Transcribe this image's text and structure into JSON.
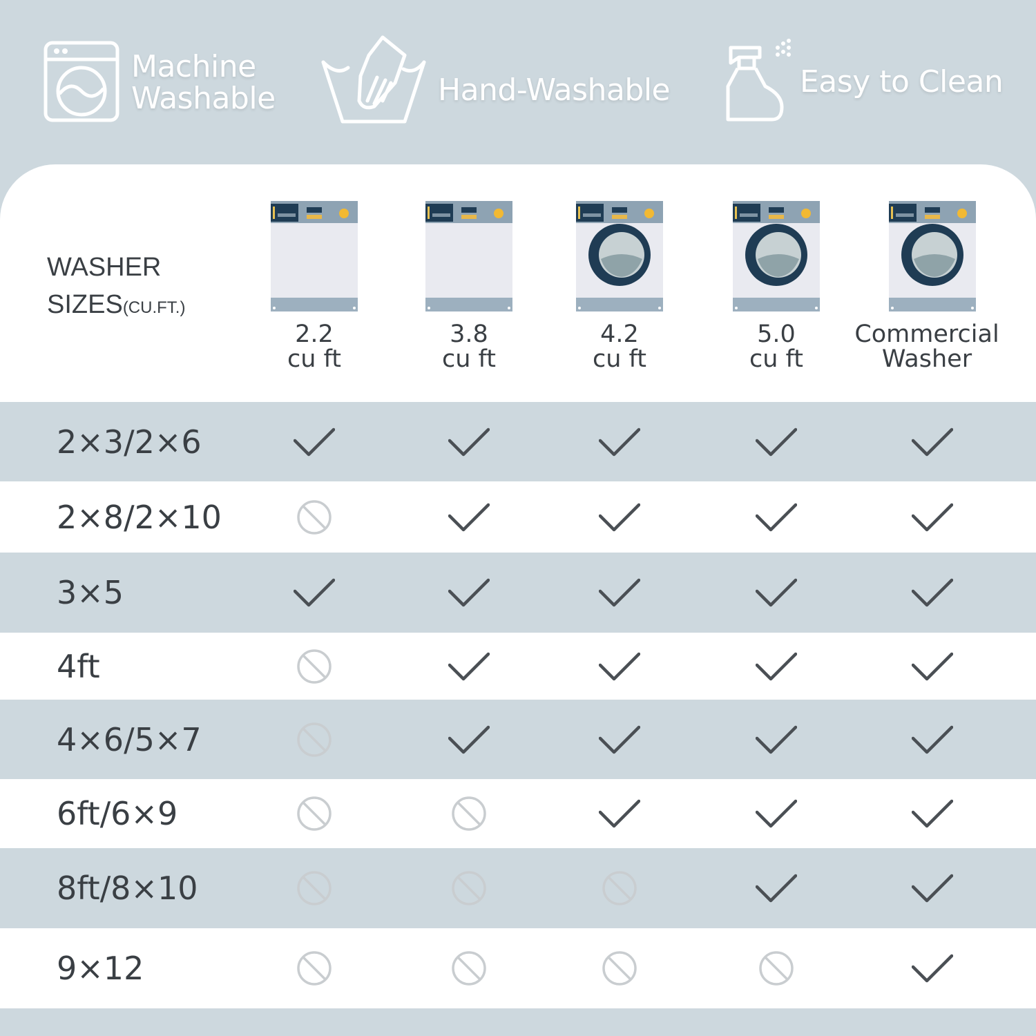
{
  "features": [
    {
      "icon": "washing-machine-icon",
      "label_line1": "Machine",
      "label_line2": "Washable"
    },
    {
      "icon": "hand-wash-basin-icon",
      "label": "Hand-Washable"
    },
    {
      "icon": "spray-bottle-icon",
      "label": "Easy to Clean"
    }
  ],
  "table": {
    "header_title_line1": "WASHER",
    "header_title_line2": "SIZES",
    "header_title_unit": "(CU.FT.)",
    "columns": [
      {
        "line1": "2.2",
        "line2": "cu ft",
        "icon": "top-washer-icon"
      },
      {
        "line1": "3.8",
        "line2": "cu ft",
        "icon": "top-washer-icon"
      },
      {
        "line1": "4.2",
        "line2": "cu ft",
        "icon": "front-load-washer-icon"
      },
      {
        "line1": "5.0",
        "line2": "cu ft",
        "icon": "front-load-washer-icon"
      },
      {
        "line1": "Commercial",
        "line2": "Washer",
        "icon": "front-load-washer-icon"
      }
    ],
    "rows": [
      {
        "label": "2×3/2×6",
        "fits": [
          true,
          true,
          true,
          true,
          true
        ]
      },
      {
        "label": "2×8/2×10",
        "fits": [
          false,
          true,
          true,
          true,
          true
        ]
      },
      {
        "label": "3×5",
        "fits": [
          true,
          true,
          true,
          true,
          true
        ]
      },
      {
        "label": "4ft",
        "fits": [
          false,
          true,
          true,
          true,
          true
        ]
      },
      {
        "label": "4×6/5×7",
        "fits": [
          false,
          true,
          true,
          true,
          true
        ]
      },
      {
        "label": "6ft/6×9",
        "fits": [
          false,
          false,
          true,
          true,
          true
        ]
      },
      {
        "label": "8ft/8×10",
        "fits": [
          false,
          false,
          false,
          true,
          true
        ]
      },
      {
        "label": "9×12",
        "fits": [
          false,
          false,
          false,
          false,
          true
        ]
      }
    ]
  },
  "colors": {
    "background": "#cdd8de",
    "check": "#4a4f54",
    "no": "#c9cdd0",
    "text": "#3a3f44"
  }
}
